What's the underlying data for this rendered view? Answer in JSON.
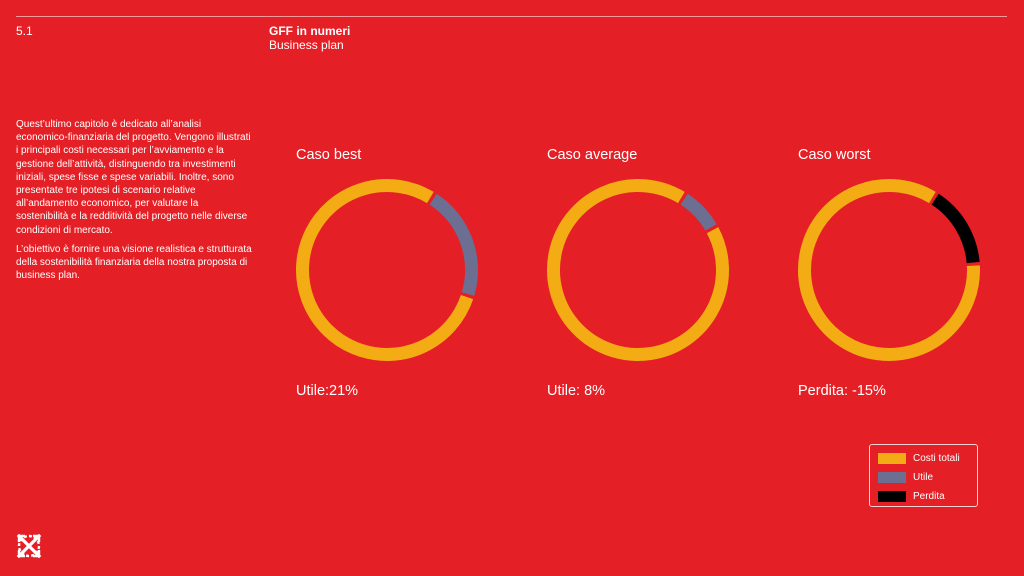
{
  "colors": {
    "background": "#E41F26",
    "costs": "#F3AC14",
    "profit": "#6C6E92",
    "loss": "#000000",
    "text": "#FFFFFF"
  },
  "header": {
    "section_number": "5.1",
    "title": "GFF in numeri",
    "subtitle": "Business plan"
  },
  "intro": {
    "paragraph_1": "Quest’ultimo capitolo è dedicato all’analisi economico-finanziaria del progetto. Vengono illustrati i principali costi necessari per l’avviamento e la gestione dell’attività, distinguendo tra investimenti iniziali, spese fisse e spese variabili. Inoltre, sono presentate tre ipotesi di scenario relative all’andamento economico, per valutare la sostenibilità e la redditività del progetto nelle diverse condizioni di mercato.",
    "paragraph_2": "L’obiettivo è fornire una visione realistica e strutturata della sostenibilità finanziaria della nostra proposta di business plan."
  },
  "legend": {
    "costs_label": "Costi totali",
    "profit_label": "Utile",
    "loss_label": "Perdita"
  },
  "logo": {
    "icon": "gff-logo-icon"
  },
  "chart_data": [
    {
      "type": "pie",
      "title": "Caso best",
      "result_label": "Utile:21%",
      "slices": [
        {
          "name": "Costi totali",
          "value": 79,
          "color_key": "costs"
        },
        {
          "name": "Utile",
          "value": 21,
          "color_key": "profit"
        }
      ]
    },
    {
      "type": "pie",
      "title": "Caso average",
      "result_label": "Utile: 8%",
      "slices": [
        {
          "name": "Costi totali",
          "value": 92,
          "color_key": "costs"
        },
        {
          "name": "Utile",
          "value": 8,
          "color_key": "profit"
        }
      ]
    },
    {
      "type": "pie",
      "title": "Caso worst",
      "result_label": "Perdita: -15%",
      "slices": [
        {
          "name": "Costi totali",
          "value": 85,
          "color_key": "costs"
        },
        {
          "name": "Perdita",
          "value": 15,
          "color_key": "loss"
        }
      ]
    }
  ]
}
